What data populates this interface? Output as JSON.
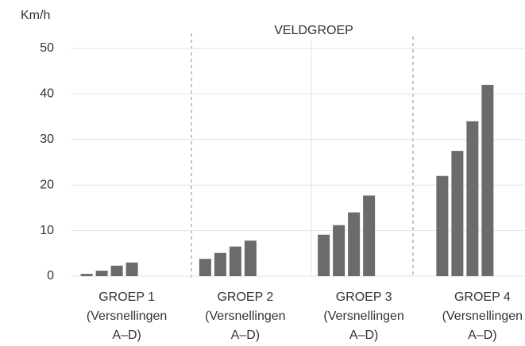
{
  "chart_data": {
    "type": "bar",
    "y_label": "Km/h",
    "annotation": "VELDGROEP",
    "categories": [
      [
        "GROEP 1",
        "(Versnellingen",
        "A–D)"
      ],
      [
        "GROEP 2",
        "(Versnellingen",
        "A–D)"
      ],
      [
        "GROEP 3",
        "(Versnellingen",
        "A–D)"
      ],
      [
        "GROEP 4",
        "(Versnellingen",
        "A–D)"
      ]
    ],
    "series": [
      {
        "color": "#6b6b6b",
        "values": [
          0.5,
          3.8,
          9.1,
          22
        ]
      },
      {
        "color": "#6b6b6b",
        "values": [
          1.2,
          5.1,
          11.2,
          27.5
        ]
      },
      {
        "color": "#6b6b6b",
        "values": [
          2.3,
          6.5,
          14,
          34
        ]
      },
      {
        "color": "#6b6b6b",
        "values": [
          3,
          7.8,
          17.7,
          42
        ]
      }
    ],
    "ylim": [
      0,
      50
    ],
    "yticks": [
      0,
      10,
      20,
      30,
      40,
      50
    ],
    "grid": true
  }
}
